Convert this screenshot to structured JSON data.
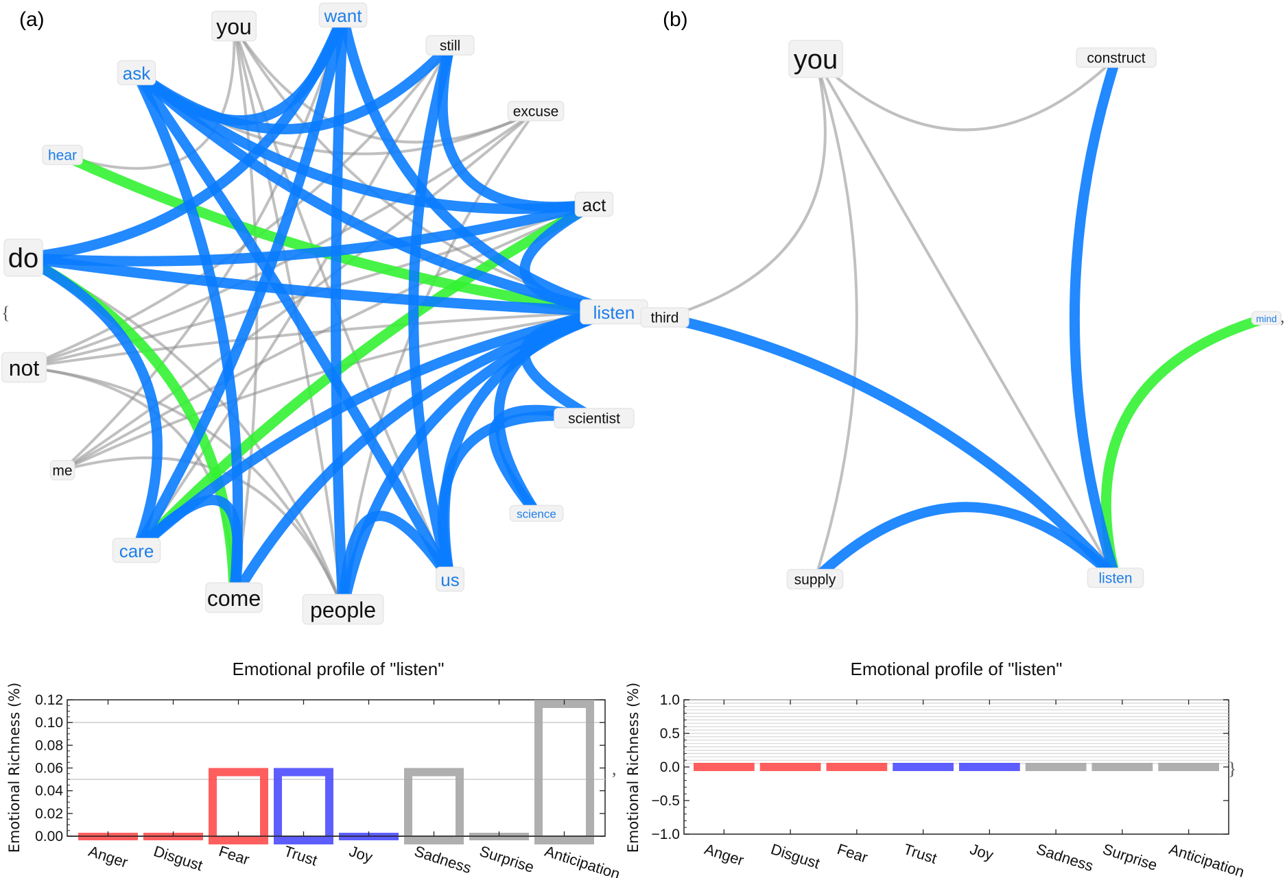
{
  "panels": {
    "a": {
      "label": "(a)"
    },
    "b": {
      "label": "(b)"
    }
  },
  "separators": {
    "open_brace": "{",
    "close_brace": "}",
    "comma": ","
  },
  "colors": {
    "blue_edge": "#0a7cff",
    "green_edge": "#33f233",
    "gray_edge": "#8c8c8c",
    "blue_text": "#1e7ee8",
    "black_text": "#111111",
    "bar_red": "#ff4d4d",
    "bar_blue": "#4c4cff",
    "bar_gray": "#a6a6a6"
  },
  "networks": [
    {
      "id": "a",
      "nodes": [
        {
          "id": "you",
          "label": "you",
          "color": "black",
          "size": "large"
        },
        {
          "id": "want",
          "label": "want",
          "color": "blue",
          "size": "medium"
        },
        {
          "id": "still",
          "label": "still",
          "color": "black",
          "size": "small"
        },
        {
          "id": "excuse",
          "label": "excuse",
          "color": "black",
          "size": "small"
        },
        {
          "id": "act",
          "label": "act",
          "color": "black",
          "size": "medium"
        },
        {
          "id": "listen",
          "label": "listen",
          "color": "blue",
          "size": "medium"
        },
        {
          "id": "scientist",
          "label": "scientist",
          "color": "black",
          "size": "small"
        },
        {
          "id": "science",
          "label": "science",
          "color": "blue",
          "size": "xsmall"
        },
        {
          "id": "us",
          "label": "us",
          "color": "blue",
          "size": "medium"
        },
        {
          "id": "people",
          "label": "people",
          "color": "black",
          "size": "large"
        },
        {
          "id": "come",
          "label": "come",
          "color": "black",
          "size": "large"
        },
        {
          "id": "care",
          "label": "care",
          "color": "blue",
          "size": "medium"
        },
        {
          "id": "me",
          "label": "me",
          "color": "black",
          "size": "small"
        },
        {
          "id": "not",
          "label": "not",
          "color": "black",
          "size": "large"
        },
        {
          "id": "do",
          "label": "do",
          "color": "black",
          "size": "xlarge"
        },
        {
          "id": "hear",
          "label": "hear",
          "color": "blue",
          "size": "small"
        },
        {
          "id": "ask",
          "label": "ask",
          "color": "blue",
          "size": "medium"
        }
      ],
      "edges": [
        {
          "from": "ask",
          "to": "still",
          "type": "blue"
        },
        {
          "from": "ask",
          "to": "want",
          "type": "blue"
        },
        {
          "from": "ask",
          "to": "act",
          "type": "blue"
        },
        {
          "from": "ask",
          "to": "listen",
          "type": "blue"
        },
        {
          "from": "ask",
          "to": "us",
          "type": "blue"
        },
        {
          "from": "ask",
          "to": "come",
          "type": "blue"
        },
        {
          "from": "want",
          "to": "do",
          "type": "blue"
        },
        {
          "from": "want",
          "to": "care",
          "type": "blue"
        },
        {
          "from": "want",
          "to": "listen",
          "type": "blue"
        },
        {
          "from": "want",
          "to": "people",
          "type": "blue"
        },
        {
          "from": "still",
          "to": "act",
          "type": "blue"
        },
        {
          "from": "still",
          "to": "us",
          "type": "blue"
        },
        {
          "from": "do",
          "to": "listen",
          "type": "blue"
        },
        {
          "from": "do",
          "to": "act",
          "type": "blue"
        },
        {
          "from": "do",
          "to": "care",
          "type": "blue"
        },
        {
          "from": "care",
          "to": "listen",
          "type": "blue"
        },
        {
          "from": "care",
          "to": "come",
          "type": "blue"
        },
        {
          "from": "come",
          "to": "listen",
          "type": "blue"
        },
        {
          "from": "people",
          "to": "us",
          "type": "blue"
        },
        {
          "from": "people",
          "to": "listen",
          "type": "blue"
        },
        {
          "from": "us",
          "to": "listen",
          "type": "blue"
        },
        {
          "from": "us",
          "to": "scientist",
          "type": "blue"
        },
        {
          "from": "science",
          "to": "listen",
          "type": "blue"
        },
        {
          "from": "science",
          "to": "scientist",
          "type": "blue"
        },
        {
          "from": "scientist",
          "to": "listen",
          "type": "blue"
        },
        {
          "from": "act",
          "to": "listen",
          "type": "blue"
        },
        {
          "from": "hear",
          "to": "listen",
          "type": "green"
        },
        {
          "from": "do",
          "to": "come",
          "type": "green"
        },
        {
          "from": "act",
          "to": "care",
          "type": "green"
        },
        {
          "from": "you",
          "to": "excuse",
          "type": "gray"
        },
        {
          "from": "you",
          "to": "people",
          "type": "gray"
        },
        {
          "from": "you",
          "to": "come",
          "type": "gray"
        },
        {
          "from": "you",
          "to": "hear",
          "type": "gray"
        },
        {
          "from": "you",
          "to": "listen",
          "type": "gray"
        },
        {
          "from": "you",
          "to": "us",
          "type": "gray"
        },
        {
          "from": "ask",
          "to": "excuse",
          "type": "gray"
        },
        {
          "from": "excuse",
          "to": "not",
          "type": "gray"
        },
        {
          "from": "excuse",
          "to": "me",
          "type": "gray"
        },
        {
          "from": "excuse",
          "to": "people",
          "type": "gray"
        },
        {
          "from": "still",
          "to": "not",
          "type": "gray"
        },
        {
          "from": "still",
          "to": "care",
          "type": "gray"
        },
        {
          "from": "not",
          "to": "listen",
          "type": "gray"
        },
        {
          "from": "not",
          "to": "people",
          "type": "gray"
        },
        {
          "from": "not",
          "to": "come",
          "type": "gray"
        },
        {
          "from": "not",
          "to": "act",
          "type": "gray"
        },
        {
          "from": "me",
          "to": "act",
          "type": "gray"
        },
        {
          "from": "me",
          "to": "listen",
          "type": "gray"
        },
        {
          "from": "me",
          "to": "people",
          "type": "gray"
        },
        {
          "from": "me",
          "to": "want",
          "type": "gray"
        },
        {
          "from": "do",
          "to": "people",
          "type": "gray"
        }
      ]
    },
    {
      "id": "b",
      "nodes": [
        {
          "id": "you",
          "label": "you",
          "color": "black",
          "size": "xlarge"
        },
        {
          "id": "construct",
          "label": "construct",
          "color": "black",
          "size": "small"
        },
        {
          "id": "mind",
          "label": "mind",
          "color": "blue",
          "size": "xxsmall"
        },
        {
          "id": "listen",
          "label": "listen",
          "color": "blue",
          "size": "small"
        },
        {
          "id": "supply",
          "label": "supply",
          "color": "black",
          "size": "small"
        },
        {
          "id": "third",
          "label": "third",
          "color": "black",
          "size": "small"
        }
      ],
      "edges": [
        {
          "from": "construct",
          "to": "listen",
          "type": "blue"
        },
        {
          "from": "third",
          "to": "listen",
          "type": "blue"
        },
        {
          "from": "supply",
          "to": "listen",
          "type": "blue"
        },
        {
          "from": "mind",
          "to": "listen",
          "type": "green"
        },
        {
          "from": "you",
          "to": "third",
          "type": "gray"
        },
        {
          "from": "you",
          "to": "construct",
          "type": "gray"
        },
        {
          "from": "you",
          "to": "listen",
          "type": "gray"
        },
        {
          "from": "you",
          "to": "supply",
          "type": "gray"
        }
      ]
    }
  ],
  "chart_data": [
    {
      "type": "bar",
      "title": "Emotional profile of \"listen\"",
      "xlabel": "",
      "ylabel": "Emotional Richness (%)",
      "categories": [
        "Anger",
        "Disgust",
        "Fear",
        "Trust",
        "Joy",
        "Sadness",
        "Surprise",
        "Anticipation"
      ],
      "values": [
        0.0,
        0.0,
        0.06,
        0.06,
        0.0,
        0.06,
        0.0,
        0.12
      ],
      "bar_colors": [
        "red",
        "red",
        "red",
        "blue",
        "blue",
        "gray",
        "gray",
        "gray"
      ],
      "ylim": [
        0.0,
        0.12
      ],
      "yticks": [
        "0.00",
        "0.02",
        "0.04",
        "0.06",
        "0.08",
        "0.10",
        "0.12"
      ],
      "gridlines": [
        0.05,
        0.1
      ],
      "grid": true,
      "legend": "none"
    },
    {
      "type": "bar",
      "title": "Emotional profile of \"listen\"",
      "xlabel": "",
      "ylabel": "Emotional Richness (%)",
      "categories": [
        "Anger",
        "Disgust",
        "Fear",
        "Trust",
        "Joy",
        "Sadness",
        "Surprise",
        "Anticipation"
      ],
      "values": [
        0.0,
        0.0,
        0.0,
        0.0,
        0.0,
        0.0,
        0.0,
        0.0
      ],
      "bar_colors": [
        "red",
        "red",
        "red",
        "blue",
        "blue",
        "gray",
        "gray",
        "gray"
      ],
      "ylim": [
        -1.0,
        1.0
      ],
      "yticks": [
        "-1.0",
        "-0.5",
        "0.0",
        "0.5",
        "1.0"
      ],
      "grid": true,
      "legend": "none"
    }
  ]
}
